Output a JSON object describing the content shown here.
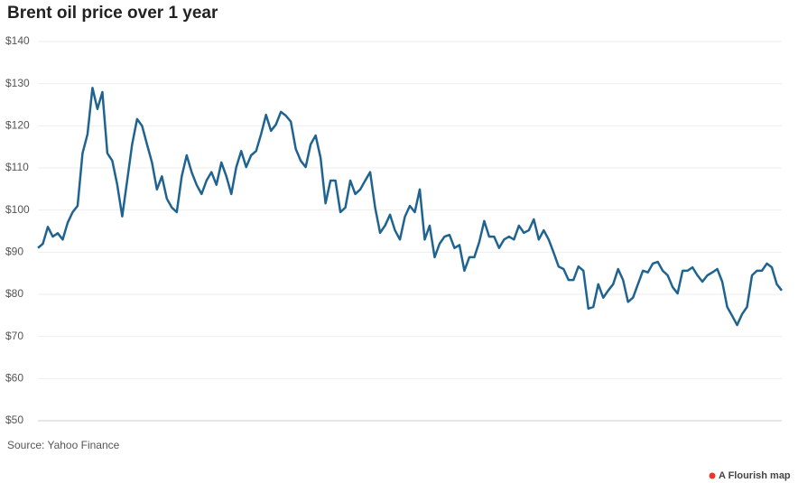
{
  "chart_data": {
    "type": "line",
    "title": "Brent oil price over 1 year",
    "source": "Source: Yahoo Finance",
    "credit": "A Flourish map",
    "categories": [
      null,
      null,
      null,
      null,
      null,
      null,
      null,
      null,
      null,
      null,
      null,
      null,
      null,
      null,
      null,
      null,
      null,
      null,
      null,
      null,
      null,
      null,
      null,
      null,
      null,
      null,
      null,
      null,
      null,
      null,
      null,
      null,
      null,
      null,
      null,
      null,
      null,
      null,
      null,
      null,
      null,
      null,
      null,
      null,
      null,
      null,
      null,
      null,
      null,
      null,
      null,
      null,
      null,
      null,
      null,
      null,
      null,
      null,
      null,
      null,
      null,
      null,
      null,
      null,
      null,
      null,
      null,
      null,
      null,
      null,
      null,
      null,
      null,
      null,
      null,
      null,
      null,
      null,
      null,
      null,
      null,
      null,
      null,
      null,
      null,
      null,
      null,
      null,
      null,
      null,
      null,
      null,
      null,
      null,
      null,
      null,
      null,
      null,
      null,
      null,
      null,
      null,
      null,
      null,
      null,
      null,
      null,
      null,
      null,
      null,
      null,
      null,
      null,
      null,
      null,
      null,
      null,
      null,
      null,
      null,
      null,
      null,
      null,
      null,
      null,
      null,
      null,
      null,
      null,
      null,
      null,
      null,
      null,
      null,
      null,
      null,
      null,
      null,
      null,
      null,
      null,
      null,
      null,
      null,
      null,
      null,
      null,
      null,
      null,
      null,
      null
    ],
    "values": [
      91,
      92,
      96,
      93.7,
      94.5,
      93,
      97,
      99.5,
      101,
      113.5,
      118,
      129,
      124,
      128,
      113.5,
      111.7,
      106,
      98.5,
      107,
      115.6,
      121.6,
      120,
      115.6,
      111.3,
      104.9,
      108,
      102.7,
      100.6,
      99.5,
      108,
      113,
      109,
      106,
      103.8,
      107,
      109,
      106,
      111.3,
      108,
      103.8,
      110.2,
      114,
      110.2,
      113,
      114,
      118,
      122.6,
      118.8,
      120.3,
      123.3,
      122.4,
      121,
      114.5,
      111.7,
      110.2,
      115.6,
      117.7,
      112.4,
      101.6,
      107,
      107,
      99.5,
      100.6,
      107,
      103.8,
      104.9,
      107,
      109,
      100.6,
      94.6,
      96.3,
      98.9,
      95.2,
      93,
      98.4,
      101,
      99.5,
      104.9,
      93,
      96.3,
      88.8,
      92,
      93.7,
      94.1,
      91,
      91.7,
      85.6,
      88.8,
      88.8,
      92.4,
      97.4,
      93.7,
      93.7,
      91,
      93,
      93.7,
      93,
      96.3,
      94.6,
      95.2,
      97.8,
      93,
      95.2,
      93,
      89.9,
      86.6,
      86,
      83.4,
      83.4,
      86.6,
      85.6,
      76.6,
      77,
      82.4,
      79.2,
      80.9,
      82.4,
      86,
      83.4,
      78.2,
      79.2,
      82.4,
      85.6,
      85.2,
      87.3,
      87.7,
      85.6,
      84.5,
      81.7,
      80.2,
      85.6,
      85.6,
      86.4,
      84.5,
      83,
      84.5,
      85.2,
      86,
      83,
      77,
      74.9,
      72.7,
      75.3,
      77,
      84.5,
      85.6,
      85.6,
      87.3,
      86.4,
      82.4,
      80.9
    ],
    "color": "#1f6391",
    "ylim": [
      50,
      140
    ],
    "yticks": [
      {
        "value": 50,
        "label": "$50"
      },
      {
        "value": 60,
        "label": "$60"
      },
      {
        "value": 70,
        "label": "$70"
      },
      {
        "value": 80,
        "label": "$80"
      },
      {
        "value": 90,
        "label": "$90"
      },
      {
        "value": 100,
        "label": "$100"
      },
      {
        "value": 110,
        "label": "$110"
      },
      {
        "value": 120,
        "label": "$120"
      },
      {
        "value": 130,
        "label": "$130"
      },
      {
        "value": 140,
        "label": "$140"
      }
    ],
    "grid": true
  }
}
